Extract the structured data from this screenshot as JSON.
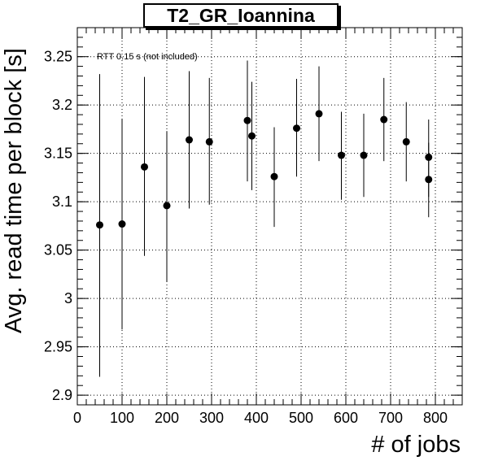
{
  "chart_data": {
    "type": "scatter",
    "title": "T2_GR_Ioannina",
    "xlabel": "# of jobs",
    "ylabel": "Avg. read time per block [s]",
    "annotation": "RTT 0.15 s (not included)",
    "xlim": [
      0,
      860
    ],
    "ylim": [
      2.89,
      3.28
    ],
    "x_ticks": [
      0,
      100,
      200,
      300,
      400,
      500,
      600,
      700,
      800
    ],
    "y_ticks": [
      2.9,
      2.95,
      3.0,
      3.05,
      3.1,
      3.15,
      3.2,
      3.25
    ],
    "x_tick_labels": [
      "0",
      "100",
      "200",
      "300",
      "400",
      "500",
      "600",
      "700",
      "800"
    ],
    "y_tick_labels": [
      "2.9",
      "2.95",
      "3",
      "3.05",
      "3.1",
      "3.15",
      "3.2",
      "3.25"
    ],
    "grid": true,
    "series": [
      {
        "points": [
          {
            "x": 50,
            "y": 3.076,
            "ylow": 2.919,
            "yhigh": 3.232
          },
          {
            "x": 100,
            "y": 3.077,
            "ylow": 2.968,
            "yhigh": 3.186
          },
          {
            "x": 150,
            "y": 3.136,
            "ylow": 3.044,
            "yhigh": 3.229
          },
          {
            "x": 200,
            "y": 3.096,
            "ylow": 3.017,
            "yhigh": 3.173
          },
          {
            "x": 250,
            "y": 3.164,
            "ylow": 3.093,
            "yhigh": 3.235
          },
          {
            "x": 295,
            "y": 3.162,
            "ylow": 3.097,
            "yhigh": 3.228
          },
          {
            "x": 380,
            "y": 3.184,
            "ylow": 3.121,
            "yhigh": 3.246
          },
          {
            "x": 390,
            "y": 3.168,
            "ylow": 3.112,
            "yhigh": 3.224
          },
          {
            "x": 440,
            "y": 3.126,
            "ylow": 3.074,
            "yhigh": 3.177
          },
          {
            "x": 490,
            "y": 3.176,
            "ylow": 3.126,
            "yhigh": 3.227
          },
          {
            "x": 540,
            "y": 3.191,
            "ylow": 3.142,
            "yhigh": 3.24
          },
          {
            "x": 590,
            "y": 3.148,
            "ylow": 3.102,
            "yhigh": 3.193
          },
          {
            "x": 640,
            "y": 3.148,
            "ylow": 3.105,
            "yhigh": 3.191
          },
          {
            "x": 685,
            "y": 3.185,
            "ylow": 3.142,
            "yhigh": 3.228
          },
          {
            "x": 735,
            "y": 3.162,
            "ylow": 3.121,
            "yhigh": 3.203
          },
          {
            "x": 785,
            "y": 3.146,
            "ylow": 3.105,
            "yhigh": 3.185
          },
          {
            "x": 785,
            "y": 3.123,
            "ylow": 3.084,
            "yhigh": 3.161
          }
        ]
      }
    ]
  }
}
